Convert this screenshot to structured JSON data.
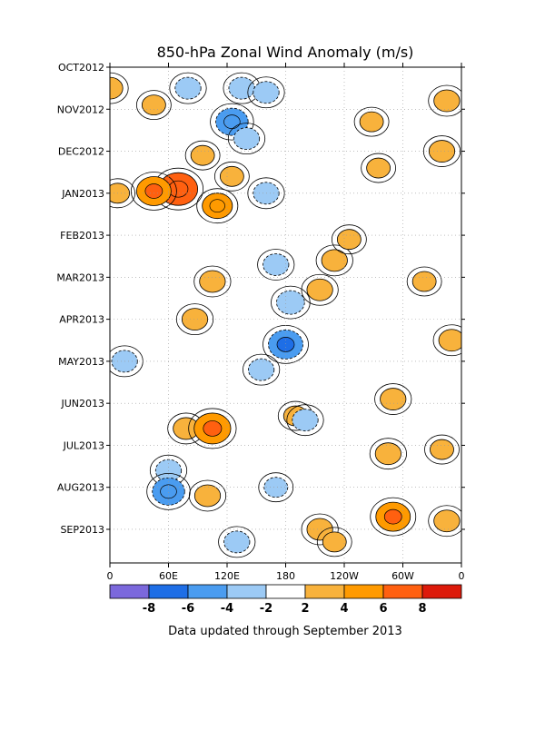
{
  "chart_data": {
    "type": "heatmap",
    "title": "850-hPa Zonal Wind Anomaly (m/s)",
    "footer": "Data updated through September 2013",
    "x_ticks": [
      "0",
      "60E",
      "120E",
      "180",
      "120W",
      "60W",
      "0"
    ],
    "x_tick_lon": [
      0,
      60,
      120,
      180,
      240,
      300,
      360
    ],
    "xlim": [
      0,
      360
    ],
    "y_ticks": [
      "OCT2012",
      "NOV2012",
      "DEC2012",
      "JAN2013",
      "FEB2013",
      "MAR2013",
      "APR2013",
      "MAY2013",
      "JUN2013",
      "JUL2013",
      "AUG2013",
      "SEP2013"
    ],
    "y_tick_month_index": [
      0,
      1,
      2,
      3,
      4,
      5,
      6,
      7,
      8,
      9,
      10,
      11
    ],
    "ylim_months": [
      0,
      11.8
    ],
    "grid": true,
    "colorbar": {
      "bounds": [
        -10,
        -8,
        -6,
        -4,
        -2,
        2,
        4,
        6,
        8,
        10
      ],
      "labels": [
        "-8",
        "-6",
        "-4",
        "-2",
        "2",
        "4",
        "6",
        "8"
      ],
      "label_values": [
        -8,
        -6,
        -4,
        -2,
        2,
        4,
        6,
        8
      ],
      "colors": [
        "#7b68dc",
        "#1e6ee6",
        "#4a9cf0",
        "#9ccaf5",
        "#ffffff",
        "#f8b23c",
        "#ff9a00",
        "#ff6010",
        "#dd1a0a"
      ]
    },
    "anomaly_blobs": [
      {
        "lon": 0,
        "t": 0.5,
        "value": 3
      },
      {
        "lon": 8,
        "t": 3.0,
        "value": 2.5
      },
      {
        "lon": 45,
        "t": 0.9,
        "value": 2.5
      },
      {
        "lon": 95,
        "t": 2.1,
        "value": 2.5
      },
      {
        "lon": 125,
        "t": 2.6,
        "value": 2.5
      },
      {
        "lon": 275,
        "t": 2.4,
        "value": 2.5
      },
      {
        "lon": 268,
        "t": 1.3,
        "value": 2.5
      },
      {
        "lon": 345,
        "t": 0.8,
        "value": 3
      },
      {
        "lon": 340,
        "t": 2.0,
        "value": 3
      },
      {
        "lon": 70,
        "t": 2.9,
        "value": 6
      },
      {
        "lon": 45,
        "t": 2.95,
        "value": 5
      },
      {
        "lon": 110,
        "t": 3.3,
        "value": 4
      },
      {
        "lon": 230,
        "t": 4.6,
        "value": 3
      },
      {
        "lon": 245,
        "t": 4.1,
        "value": 2.5
      },
      {
        "lon": 215,
        "t": 5.3,
        "value": 3
      },
      {
        "lon": 322,
        "t": 5.1,
        "value": 2.5
      },
      {
        "lon": 350,
        "t": 6.5,
        "value": 3
      },
      {
        "lon": 87,
        "t": 6.0,
        "value": 3
      },
      {
        "lon": 105,
        "t": 5.1,
        "value": 3
      },
      {
        "lon": 78,
        "t": 8.6,
        "value": 3
      },
      {
        "lon": 105,
        "t": 8.6,
        "value": 5.5
      },
      {
        "lon": 190,
        "t": 8.3,
        "value": 2.5
      },
      {
        "lon": 290,
        "t": 7.9,
        "value": 3
      },
      {
        "lon": 285,
        "t": 9.2,
        "value": 3
      },
      {
        "lon": 340,
        "t": 9.1,
        "value": 2.5
      },
      {
        "lon": 100,
        "t": 10.2,
        "value": 3
      },
      {
        "lon": 290,
        "t": 10.7,
        "value": 5
      },
      {
        "lon": 345,
        "t": 10.8,
        "value": 3
      },
      {
        "lon": 215,
        "t": 11.0,
        "value": 3
      },
      {
        "lon": 230,
        "t": 11.3,
        "value": 2.5
      },
      {
        "lon": 80,
        "t": 0.5,
        "value": -3
      },
      {
        "lon": 135,
        "t": 0.5,
        "value": -3
      },
      {
        "lon": 160,
        "t": 0.6,
        "value": -3
      },
      {
        "lon": 125,
        "t": 1.3,
        "value": -4.5
      },
      {
        "lon": 140,
        "t": 1.7,
        "value": -3
      },
      {
        "lon": 160,
        "t": 3.0,
        "value": -3
      },
      {
        "lon": 170,
        "t": 4.7,
        "value": -3
      },
      {
        "lon": 185,
        "t": 5.6,
        "value": -3.5
      },
      {
        "lon": 180,
        "t": 6.6,
        "value": -5
      },
      {
        "lon": 155,
        "t": 7.2,
        "value": -3
      },
      {
        "lon": 15,
        "t": 7.0,
        "value": -3
      },
      {
        "lon": 200,
        "t": 8.4,
        "value": -3
      },
      {
        "lon": 60,
        "t": 9.6,
        "value": -3
      },
      {
        "lon": 60,
        "t": 10.1,
        "value": -4.5
      },
      {
        "lon": 170,
        "t": 10.0,
        "value": -2.5
      },
      {
        "lon": 130,
        "t": 11.3,
        "value": -3
      }
    ]
  }
}
